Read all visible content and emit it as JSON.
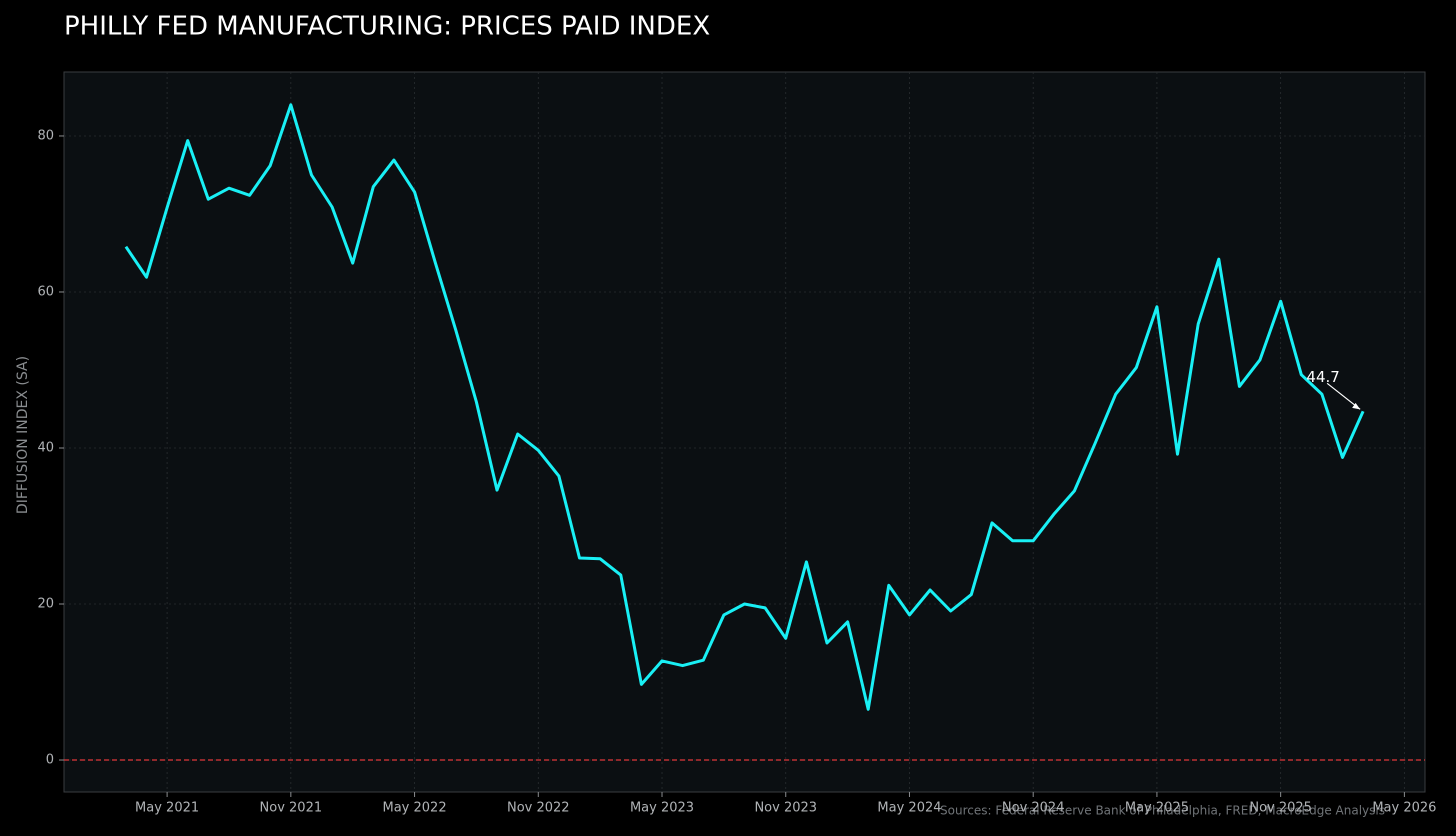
{
  "chart_data": {
    "type": "line",
    "title": "PHILLY FED MANUFACTURING: PRICES PAID INDEX",
    "y_label": "DIFFUSION INDEX (SA)",
    "source": "Sources: Federal Reserve Bank of Philadelphia, FRED, MacroEdge Analysis",
    "annotation": {
      "text": "44.7"
    },
    "color": "#19f0f5",
    "zero_line": {
      "color": "#e0383b"
    },
    "grid": true,
    "x": [
      "2021-03",
      "2021-04",
      "2021-05",
      "2021-06",
      "2021-07",
      "2021-08",
      "2021-09",
      "2021-10",
      "2021-11",
      "2021-12",
      "2022-01",
      "2022-02",
      "2022-03",
      "2022-04",
      "2022-05",
      "2022-06",
      "2022-07",
      "2022-08",
      "2022-09",
      "2022-10",
      "2022-11",
      "2022-12",
      "2023-01",
      "2023-02",
      "2023-03",
      "2023-04",
      "2023-05",
      "2023-06",
      "2023-07",
      "2023-08",
      "2023-09",
      "2023-10",
      "2023-11",
      "2023-12",
      "2024-01",
      "2024-02",
      "2024-03",
      "2024-04",
      "2024-05",
      "2024-06",
      "2024-07",
      "2024-08",
      "2024-09",
      "2024-10",
      "2024-11",
      "2024-12",
      "2025-01",
      "2025-02",
      "2025-03",
      "2025-04",
      "2025-05",
      "2025-06",
      "2025-07",
      "2025-08",
      "2025-09",
      "2025-10",
      "2025-11",
      "2025-12",
      "2026-01",
      "2026-02",
      "2026-03"
    ],
    "values": [
      65.8,
      61.9,
      70.8,
      79.4,
      71.9,
      73.3,
      72.4,
      76.2,
      84.0,
      75.0,
      70.9,
      63.7,
      73.5,
      76.9,
      72.8,
      63.8,
      55.1,
      45.9,
      34.6,
      41.8,
      39.7,
      36.4,
      25.9,
      25.8,
      23.7,
      9.7,
      12.7,
      12.1,
      12.8,
      18.6,
      20.0,
      19.5,
      15.6,
      25.4,
      15.0,
      17.7,
      6.5,
      22.4,
      18.6,
      21.8,
      19.1,
      21.2,
      30.4,
      28.1,
      28.1,
      31.5,
      34.5,
      40.6,
      46.9,
      50.3,
      58.1,
      39.2,
      55.9,
      64.2,
      47.9,
      51.3,
      58.8,
      49.4,
      46.9,
      38.8,
      44.7
    ],
    "xlim": [
      "2020-12",
      "2026-06"
    ],
    "xticks": [
      {
        "value": "2021-05",
        "label": "May 2021"
      },
      {
        "value": "2021-11",
        "label": "Nov 2021"
      },
      {
        "value": "2022-05",
        "label": "May 2022"
      },
      {
        "value": "2022-11",
        "label": "Nov 2022"
      },
      {
        "value": "2023-05",
        "label": "May 2023"
      },
      {
        "value": "2023-11",
        "label": "Nov 2023"
      },
      {
        "value": "2024-05",
        "label": "May 2024"
      },
      {
        "value": "2024-11",
        "label": "Nov 2024"
      },
      {
        "value": "2025-05",
        "label": "May 2025"
      },
      {
        "value": "2025-11",
        "label": "Nov 2025"
      },
      {
        "value": "2026-05",
        "label": "May 2026"
      }
    ],
    "ylim": [
      -4.1,
      88.2
    ],
    "yticks": [
      0,
      20,
      40,
      60,
      80
    ]
  }
}
